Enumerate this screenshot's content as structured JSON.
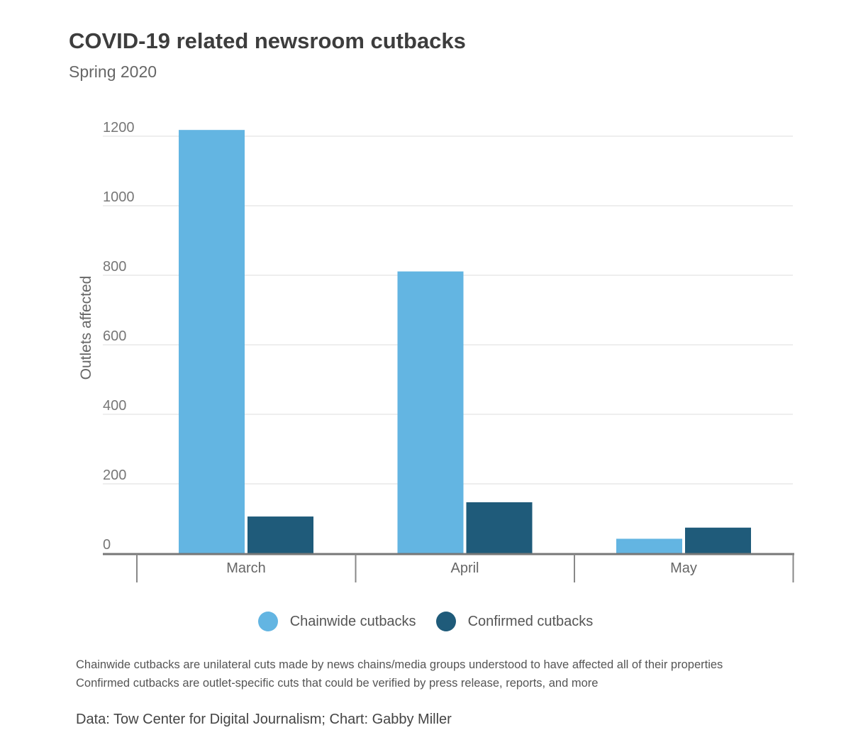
{
  "header": {
    "title": "COVID-19 related newsroom cutbacks",
    "subtitle": "Spring 2020"
  },
  "legend": {
    "items": [
      {
        "label": "Chainwide cutbacks",
        "color": "#63b5e2"
      },
      {
        "label": "Confirmed cutbacks",
        "color": "#1f5b7a"
      }
    ]
  },
  "notes": [
    "Chainwide cutbacks are unilateral cuts made by news chains/media groups understood to have affected all of their properties",
    "Confirmed cutbacks are outlet-specific cuts that could be verified by press release, reports, and more"
  ],
  "source": "Data: Tow Center for Digital Journalism; Chart: Gabby Miller",
  "chart_data": {
    "type": "bar",
    "title": "COVID-19 related newsroom cutbacks",
    "subtitle": "Spring 2020",
    "xlabel": "",
    "ylabel": "Outlets affected",
    "categories": [
      "March",
      "April",
      "May"
    ],
    "series": [
      {
        "name": "Chainwide cutbacks",
        "color": "#63b5e2",
        "values": [
          1218,
          811,
          42
        ]
      },
      {
        "name": "Confirmed cutbacks",
        "color": "#1f5b7a",
        "values": [
          106,
          147,
          74
        ]
      }
    ],
    "ylim": [
      0,
      1200
    ],
    "yticks": [
      "0",
      "200",
      "400",
      "600",
      "800",
      "1000",
      "1200"
    ],
    "grid": true,
    "legend_position": "bottom"
  }
}
